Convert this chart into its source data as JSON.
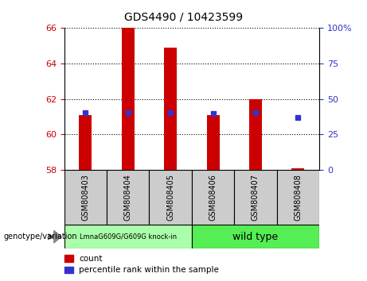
{
  "title": "GDS4490 / 10423599",
  "samples": [
    "GSM808403",
    "GSM808404",
    "GSM808405",
    "GSM808406",
    "GSM808407",
    "GSM808408"
  ],
  "bar_bottoms": [
    58,
    58,
    58,
    58,
    58,
    58
  ],
  "bar_tops": [
    61.1,
    66.0,
    64.9,
    61.1,
    62.0,
    58.1
  ],
  "percentile_y_left": [
    61.25,
    61.25,
    61.25,
    61.2,
    61.25,
    60.95
  ],
  "left_ylim": [
    58,
    66
  ],
  "left_yticks": [
    58,
    60,
    62,
    64,
    66
  ],
  "right_ylim": [
    0,
    100
  ],
  "right_yticks": [
    0,
    25,
    50,
    75,
    100
  ],
  "right_yticklabels": [
    "0",
    "25",
    "50",
    "75",
    "100%"
  ],
  "bar_color": "#cc0000",
  "dot_color": "#3333cc",
  "group1_label": "LmnaG609G/G609G knock-in",
  "group2_label": "wild type",
  "group1_n": 3,
  "group2_n": 3,
  "group1_color": "#aaffaa",
  "group2_color": "#55ee55",
  "sample_box_color": "#cccccc",
  "genotype_label": "genotype/variation",
  "legend_count_label": "count",
  "legend_pct_label": "percentile rank within the sample",
  "bar_width": 0.3,
  "title_fontsize": 10,
  "tick_fontsize": 8,
  "label_fontsize": 7,
  "legend_fontsize": 7.5
}
